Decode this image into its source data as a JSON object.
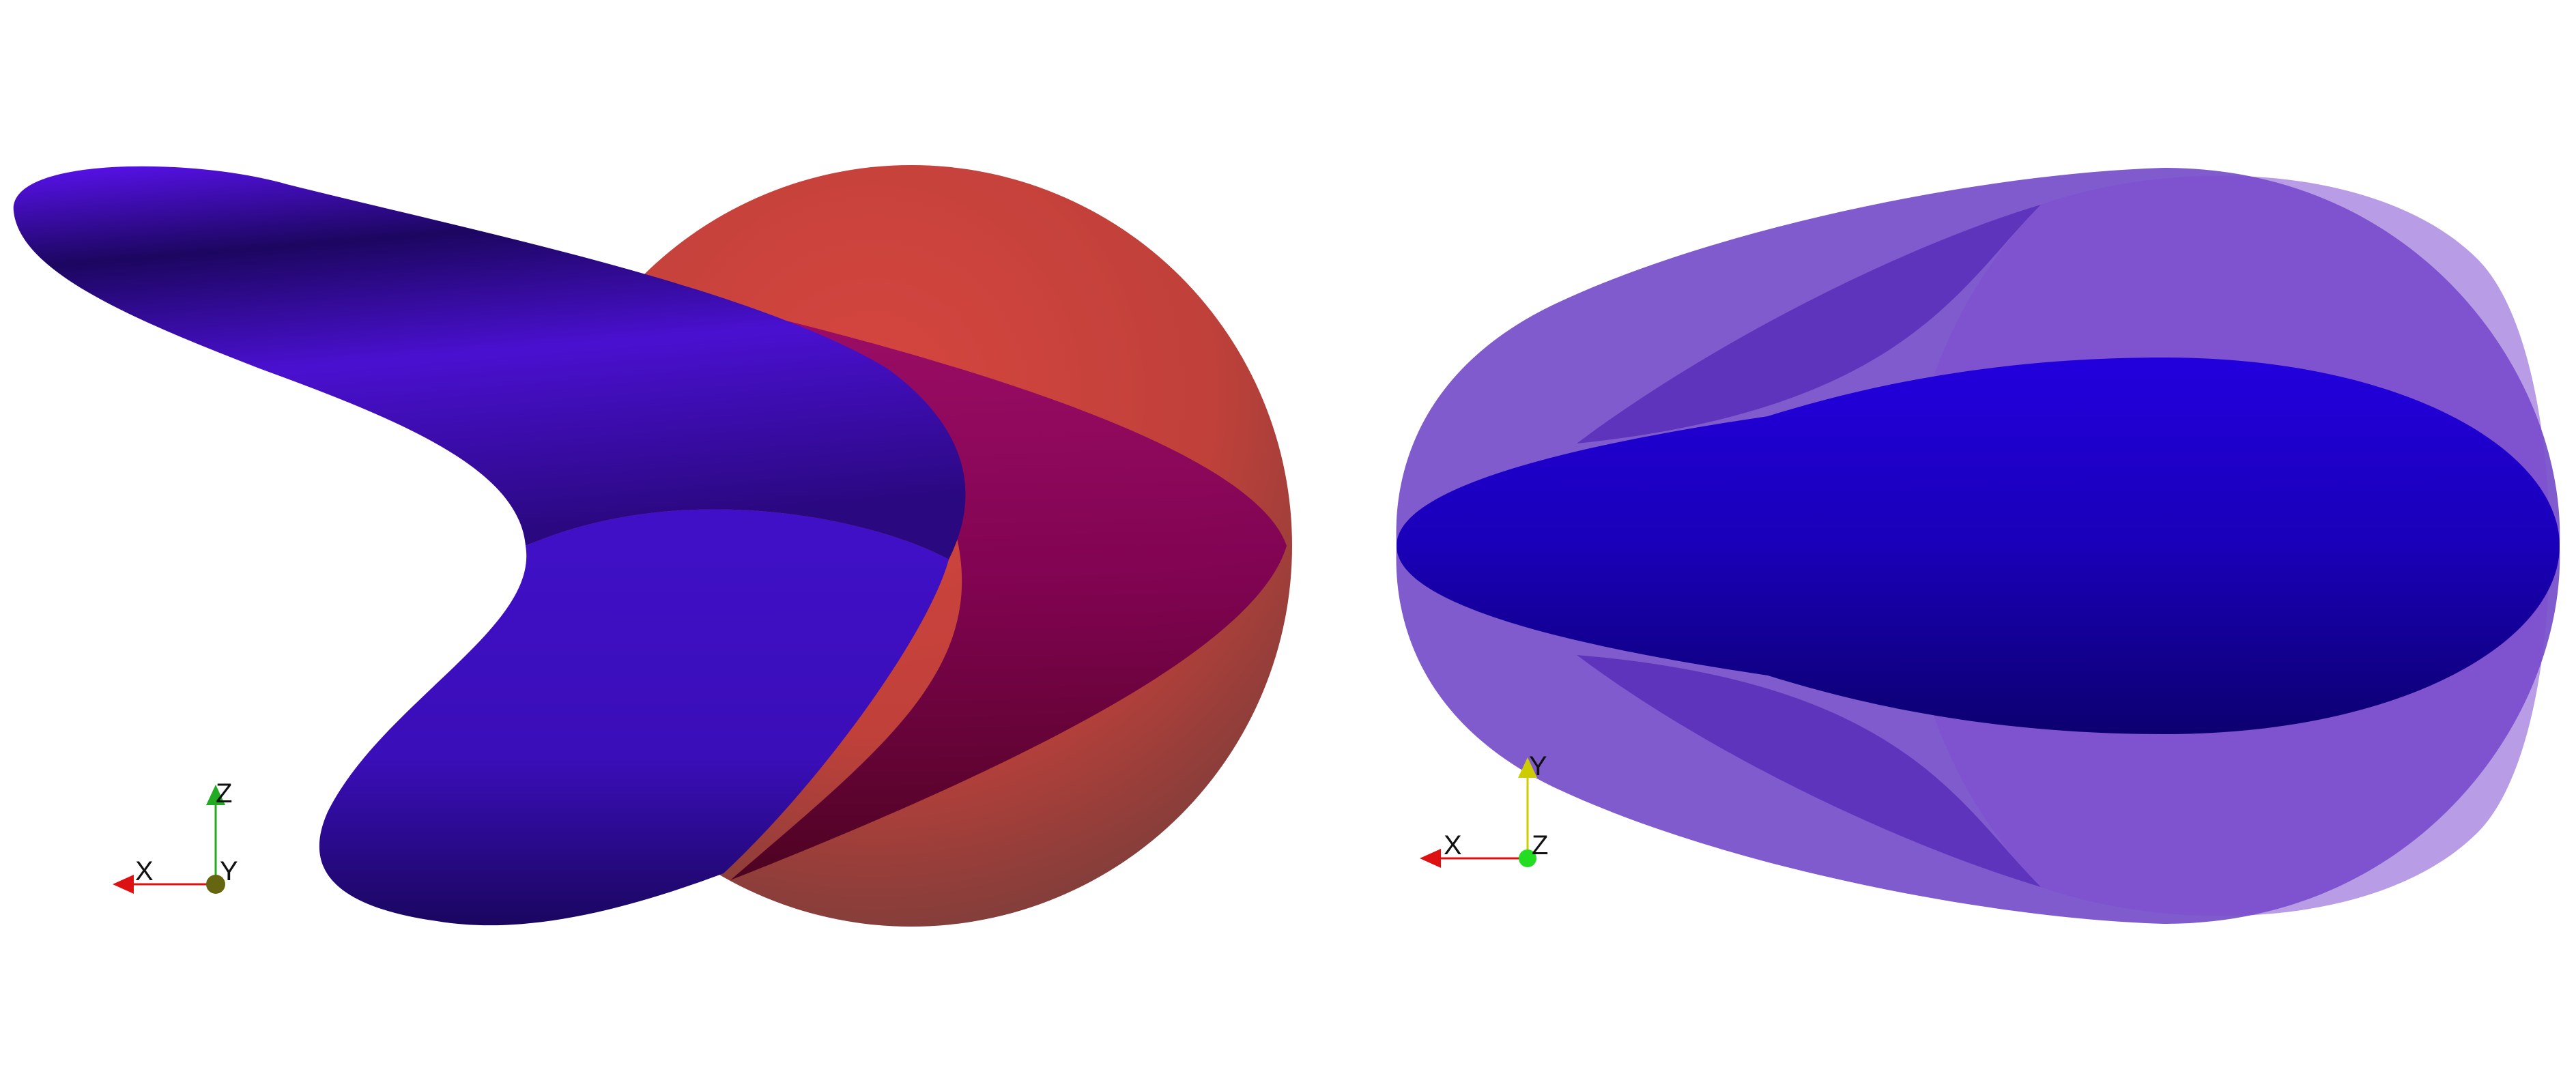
{
  "viewports": [
    {
      "name": "left-view",
      "triad": {
        "horizontal": "X",
        "vertical": "Z",
        "center": "Y"
      },
      "colors": {
        "sphere": "#c8443f",
        "boomerang": "#4a10d8",
        "x_axis": "#dd1111",
        "vertical_axis": "#22aa22",
        "center_dot": "#666611"
      }
    },
    {
      "name": "right-view",
      "triad": {
        "horizontal": "X",
        "vertical": "Y",
        "center": "Z"
      },
      "colors": {
        "outer_shell": "#6a3ec4",
        "inner_ellipsoid": "#1a00c0",
        "x_axis": "#dd1111",
        "vertical_axis": "#cccc00",
        "center_dot": "#22dd22"
      }
    }
  ]
}
